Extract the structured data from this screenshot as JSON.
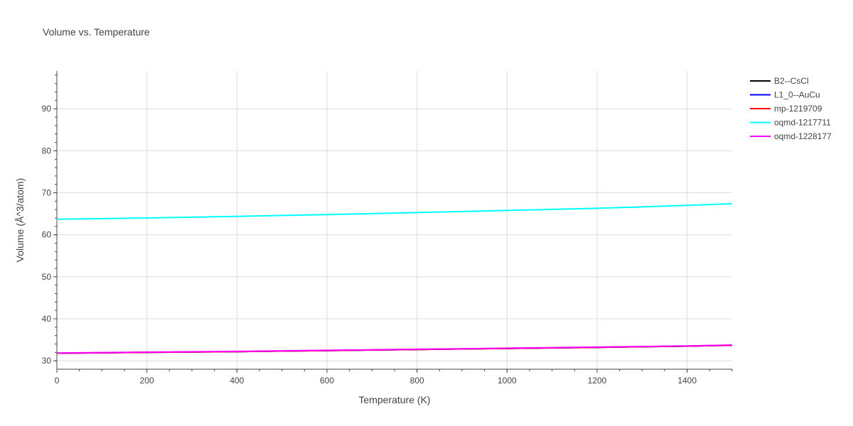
{
  "chart_data": {
    "type": "line",
    "title": "Volume vs. Temperature",
    "xlabel": "Temperature (K)",
    "ylabel": "Volume (Å^3/atom)",
    "xlim": [
      0,
      1500
    ],
    "ylim": [
      28,
      99
    ],
    "xticks": [
      0,
      200,
      400,
      600,
      800,
      1000,
      1200,
      1400
    ],
    "yticks": [
      30,
      40,
      50,
      60,
      70,
      80,
      90
    ],
    "grid": true,
    "legend_position": "top-right",
    "series": [
      {
        "name": "B2--CsCl",
        "color": "#000000",
        "x": [
          0,
          200,
          400,
          600,
          800,
          1000,
          1200,
          1400,
          1500
        ],
        "y": [
          31.8,
          32.0,
          32.2,
          32.45,
          32.7,
          32.95,
          33.2,
          33.5,
          33.7
        ]
      },
      {
        "name": "L1_0--AuCu",
        "color": "#0000ff",
        "x": [
          0,
          200,
          400,
          600,
          800,
          1000,
          1200,
          1400,
          1500
        ],
        "y": [
          31.8,
          32.0,
          32.2,
          32.45,
          32.7,
          32.95,
          33.2,
          33.5,
          33.7
        ]
      },
      {
        "name": "mp-1219709",
        "color": "#ff0000",
        "x": [
          0,
          200,
          400,
          600,
          800,
          1000,
          1200,
          1400,
          1500
        ],
        "y": [
          31.8,
          32.0,
          32.2,
          32.45,
          32.7,
          32.95,
          33.2,
          33.5,
          33.7
        ]
      },
      {
        "name": "oqmd-1217711",
        "color": "#00ffff",
        "x": [
          0,
          200,
          400,
          600,
          800,
          1000,
          1200,
          1400,
          1500
        ],
        "y": [
          63.7,
          64.0,
          64.4,
          64.8,
          65.3,
          65.8,
          66.3,
          67.0,
          67.4
        ]
      },
      {
        "name": "oqmd-1228177",
        "color": "#ff00ff",
        "x": [
          0,
          200,
          400,
          600,
          800,
          1000,
          1200,
          1400,
          1500
        ],
        "y": [
          31.85,
          32.05,
          32.25,
          32.5,
          32.75,
          33.0,
          33.25,
          33.55,
          33.75
        ]
      }
    ]
  }
}
